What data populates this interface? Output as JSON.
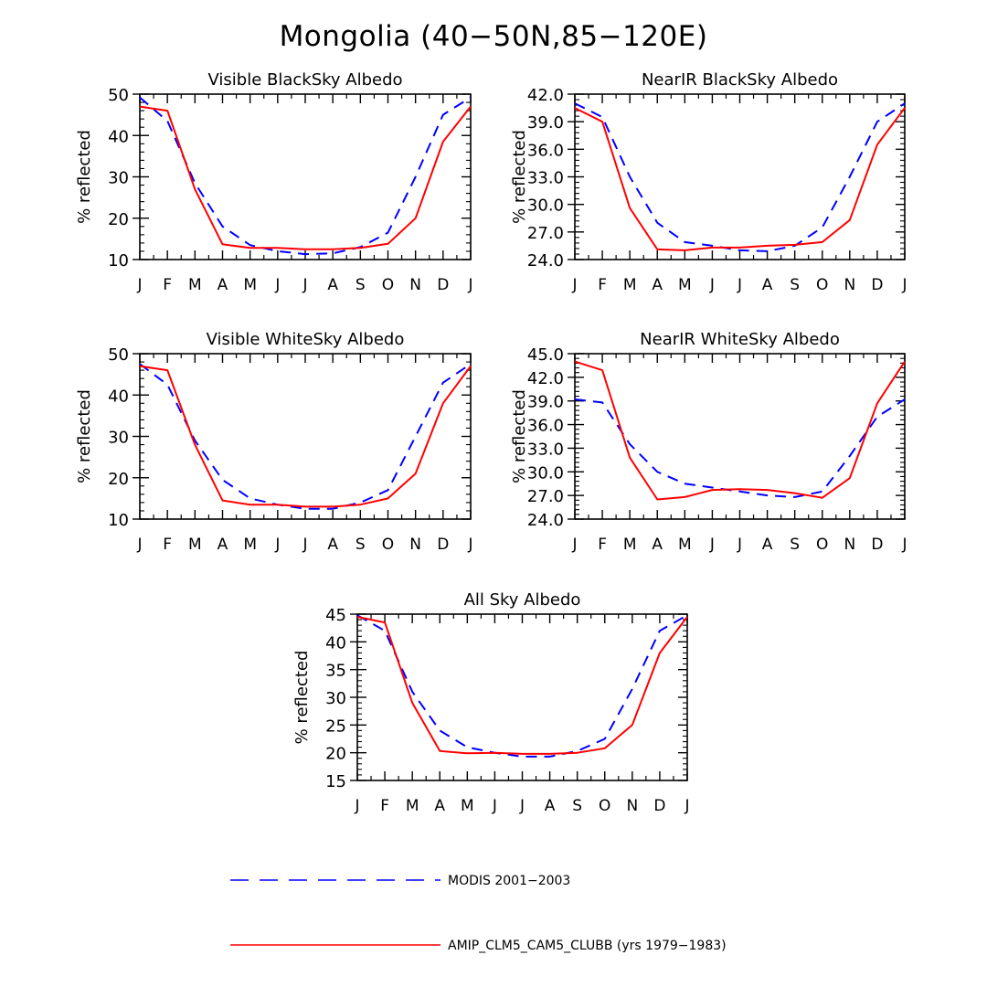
{
  "figure_title": "Mongolia (40−50N,85−120E)",
  "legend": [
    {
      "label": "MODIS 2001−2003",
      "color": "#0000ff",
      "style": "dashed"
    },
    {
      "label": "AMIP_CLM5_CAM5_CLUBB (yrs 1979−1983)",
      "color": "#ff0000",
      "style": "solid"
    }
  ],
  "chart_data": [
    {
      "type": "line",
      "title": "Visible BlackSky Albedo",
      "ylabel": "% reflected",
      "xlabel": "",
      "categories": [
        "J",
        "F",
        "M",
        "A",
        "M",
        "J",
        "J",
        "A",
        "S",
        "O",
        "N",
        "D",
        "J"
      ],
      "ylim": [
        10,
        50
      ],
      "yticks": [
        10,
        20,
        30,
        40,
        50
      ],
      "ytick_labels": [
        "10",
        "20",
        "30",
        "40",
        "50"
      ],
      "series": [
        {
          "name": "MODIS 2001−2003",
          "color": "#0000ff",
          "dashed": true,
          "values": [
            49.2,
            43.5,
            28.5,
            18.0,
            13.5,
            12.0,
            11.3,
            11.5,
            13.0,
            16.5,
            30.0,
            45.0,
            49.2
          ]
        },
        {
          "name": "AMIP_CLM5_CAM5_CLUBB (yrs 1979−1983)",
          "color": "#ff0000",
          "dashed": false,
          "values": [
            47.0,
            46.0,
            27.0,
            13.7,
            12.8,
            12.8,
            12.5,
            12.5,
            12.8,
            13.8,
            20.0,
            38.5,
            47.0
          ]
        }
      ]
    },
    {
      "type": "line",
      "title": "NearIR BlackSky Albedo",
      "ylabel": "% reflected",
      "xlabel": "",
      "categories": [
        "J",
        "F",
        "M",
        "A",
        "M",
        "J",
        "J",
        "A",
        "S",
        "O",
        "N",
        "D",
        "J"
      ],
      "ylim": [
        24,
        42
      ],
      "yticks": [
        24,
        27,
        30,
        33,
        36,
        39,
        42
      ],
      "ytick_labels": [
        "24.0",
        "27.0",
        "30.0",
        "33.0",
        "36.0",
        "39.0",
        "42.0"
      ],
      "series": [
        {
          "name": "MODIS 2001−2003",
          "color": "#0000ff",
          "dashed": true,
          "values": [
            41.0,
            39.5,
            33.0,
            28.0,
            25.9,
            25.5,
            25.0,
            24.9,
            25.5,
            27.5,
            33.0,
            39.0,
            41.0
          ]
        },
        {
          "name": "AMIP_CLM5_CAM5_CLUBB (yrs 1979−1983)",
          "color": "#ff0000",
          "dashed": false,
          "values": [
            40.5,
            39.0,
            29.6,
            25.1,
            25.0,
            25.3,
            25.3,
            25.5,
            25.6,
            25.9,
            28.3,
            36.5,
            40.5
          ]
        }
      ]
    },
    {
      "type": "line",
      "title": "Visible WhiteSky Albedo",
      "ylabel": "% reflected",
      "xlabel": "",
      "categories": [
        "J",
        "F",
        "M",
        "A",
        "M",
        "J",
        "J",
        "A",
        "S",
        "O",
        "N",
        "D",
        "J"
      ],
      "ylim": [
        10,
        50
      ],
      "yticks": [
        10,
        20,
        30,
        40,
        50
      ],
      "ytick_labels": [
        "10",
        "20",
        "30",
        "40",
        "50"
      ],
      "series": [
        {
          "name": "MODIS 2001−2003",
          "color": "#0000ff",
          "dashed": true,
          "values": [
            47.5,
            42.5,
            29.0,
            19.5,
            15.0,
            13.5,
            12.5,
            12.5,
            14.0,
            17.0,
            30.0,
            43.0,
            47.5
          ]
        },
        {
          "name": "AMIP_CLM5_CAM5_CLUBB (yrs 1979−1983)",
          "color": "#ff0000",
          "dashed": false,
          "values": [
            47.0,
            46.0,
            28.0,
            14.5,
            13.5,
            13.5,
            13.0,
            13.0,
            13.5,
            15.0,
            21.0,
            38.0,
            47.0
          ]
        }
      ]
    },
    {
      "type": "line",
      "title": "NearIR WhiteSky Albedo",
      "ylabel": "% reflected",
      "xlabel": "",
      "categories": [
        "J",
        "F",
        "M",
        "A",
        "M",
        "J",
        "J",
        "A",
        "S",
        "O",
        "N",
        "D",
        "J"
      ],
      "ylim": [
        24,
        45
      ],
      "yticks": [
        24,
        27,
        30,
        33,
        36,
        39,
        42,
        45
      ],
      "ytick_labels": [
        "24.0",
        "27.0",
        "30.0",
        "33.0",
        "36.0",
        "39.0",
        "42.0",
        "45.0"
      ],
      "series": [
        {
          "name": "MODIS 2001−2003",
          "color": "#0000ff",
          "dashed": true,
          "values": [
            39.2,
            38.8,
            33.5,
            30.0,
            28.5,
            28.0,
            27.5,
            27.0,
            26.8,
            27.5,
            32.0,
            37.0,
            39.2
          ]
        },
        {
          "name": "AMIP_CLM5_CAM5_CLUBB (yrs 1979−1983)",
          "color": "#ff0000",
          "dashed": false,
          "values": [
            44.0,
            42.9,
            31.8,
            26.5,
            26.8,
            27.7,
            27.8,
            27.7,
            27.3,
            26.7,
            29.2,
            38.7,
            44.0
          ]
        }
      ]
    },
    {
      "type": "line",
      "title": "All Sky Albedo",
      "ylabel": "% reflected",
      "xlabel": "",
      "categories": [
        "J",
        "F",
        "M",
        "A",
        "M",
        "J",
        "J",
        "A",
        "S",
        "O",
        "N",
        "D",
        "J"
      ],
      "ylim": [
        15,
        45
      ],
      "yticks": [
        15,
        20,
        25,
        30,
        35,
        40,
        45
      ],
      "ytick_labels": [
        "15",
        "20",
        "25",
        "30",
        "35",
        "40",
        "45"
      ],
      "series": [
        {
          "name": "MODIS 2001−2003",
          "color": "#0000ff",
          "dashed": true,
          "values": [
            44.8,
            42.0,
            31.0,
            24.0,
            21.0,
            20.0,
            19.3,
            19.3,
            20.3,
            22.5,
            31.5,
            42.0,
            44.8
          ]
        },
        {
          "name": "AMIP_CLM5_CAM5_CLUBB (yrs 1979−1983)",
          "color": "#ff0000",
          "dashed": false,
          "values": [
            44.5,
            43.5,
            29.0,
            20.3,
            19.9,
            20.0,
            19.8,
            19.8,
            20.0,
            20.8,
            25.0,
            38.0,
            44.5
          ]
        }
      ]
    }
  ]
}
